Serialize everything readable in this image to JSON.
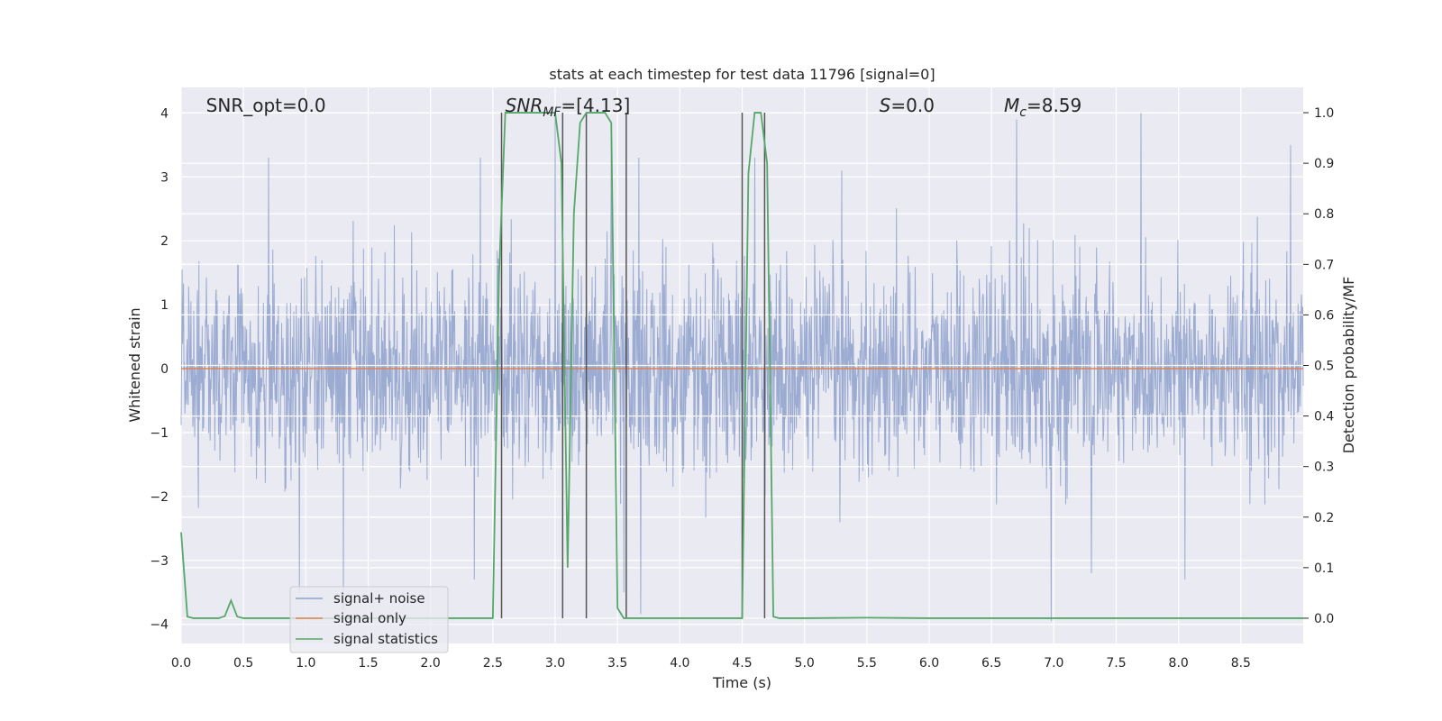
{
  "chart_data": {
    "type": "line",
    "title": "stats at each timestep for test data 11796 [signal=0]",
    "xlabel": "Time (s)",
    "ylabel_left": "Whitened strain",
    "ylabel_right": "Detection probability/MF",
    "xlim": [
      0.0,
      9.0
    ],
    "ylim_left": [
      -4.3,
      4.4
    ],
    "ylim_right": [
      -0.05,
      1.05
    ],
    "x_ticks": [
      0.0,
      0.5,
      1.0,
      1.5,
      2.0,
      2.5,
      3.0,
      3.5,
      4.0,
      4.5,
      5.0,
      5.5,
      6.0,
      6.5,
      7.0,
      7.5,
      8.0,
      8.5
    ],
    "x_tick_labels": [
      "0.0",
      "0.5",
      "1.0",
      "1.5",
      "2.0",
      "2.5",
      "3.0",
      "3.5",
      "4.0",
      "4.5",
      "5.0",
      "5.5",
      "6.0",
      "6.5",
      "7.0",
      "7.5",
      "8.0",
      "8.5"
    ],
    "y_ticks_left": [
      -4,
      -3,
      -2,
      -1,
      0,
      1,
      2,
      3,
      4
    ],
    "y_tick_labels_left": [
      "−4",
      "−3",
      "−2",
      "−1",
      "0",
      "1",
      "2",
      "3",
      "4"
    ],
    "y_ticks_right": [
      0.0,
      0.1,
      0.2,
      0.3,
      0.4,
      0.5,
      0.6,
      0.7,
      0.8,
      0.9,
      1.0
    ],
    "y_tick_labels_right": [
      "0.0",
      "0.1",
      "0.2",
      "0.3",
      "0.4",
      "0.5",
      "0.6",
      "0.7",
      "0.8",
      "0.9",
      "1.0"
    ],
    "grid": true,
    "legend_location": "lower-left",
    "annotations": [
      {
        "text": "SNR_opt=0.0",
        "x": 0.2
      },
      {
        "text": "SNR_MF=[4.13]",
        "x": 2.6
      },
      {
        "text": "S=0.0",
        "x": 5.6
      },
      {
        "text": "M_c=8.59",
        "x": 6.6
      }
    ],
    "series": [
      {
        "name": "signal+ noise",
        "axis": "left",
        "color": "#8da0cb",
        "description": "whitened strain noise, approx. gaussian, sigma ~0.8, range about -3.9 to 4.0",
        "sigma": 0.8,
        "peak_points": [
          [
            0.7,
            3.3
          ],
          [
            1.3,
            3.2
          ],
          [
            2.4,
            3.3
          ],
          [
            3.0,
            4.0
          ],
          [
            3.45,
            3.6
          ],
          [
            3.67,
            3.3
          ],
          [
            4.6,
            3.3
          ],
          [
            5.3,
            3.1
          ],
          [
            6.7,
            3.9
          ],
          [
            7.7,
            4.0
          ],
          [
            8.9,
            3.5
          ]
        ],
        "trough_points": [
          [
            0.95,
            -3.5
          ],
          [
            1.3,
            -3.8
          ],
          [
            2.35,
            -3.3
          ],
          [
            3.55,
            -3.5
          ],
          [
            6.98,
            -3.95
          ],
          [
            7.3,
            -3.2
          ],
          [
            8.05,
            -3.3
          ]
        ]
      },
      {
        "name": "signal only",
        "axis": "left",
        "color": "#dd8452",
        "x": [
          0.0,
          9.0
        ],
        "y": [
          0.0,
          0.0
        ]
      },
      {
        "name": "signal statistics",
        "axis": "right",
        "color": "#55a868",
        "x": [
          0.0,
          0.05,
          0.1,
          0.15,
          0.2,
          0.25,
          0.3,
          0.35,
          0.4,
          0.45,
          0.5,
          0.55,
          0.6,
          0.7,
          0.8,
          0.9,
          1.0,
          1.5,
          2.0,
          2.5,
          2.55,
          2.6,
          2.65,
          2.7,
          2.75,
          2.8,
          2.85,
          2.9,
          2.95,
          3.0,
          3.05,
          3.1,
          3.15,
          3.2,
          3.25,
          3.3,
          3.35,
          3.4,
          3.45,
          3.5,
          3.55,
          3.6,
          3.65,
          3.7,
          3.75,
          3.8,
          4.0,
          4.5,
          4.55,
          4.6,
          4.65,
          4.7,
          4.75,
          4.8,
          4.85,
          4.9,
          5.0,
          5.5,
          6.0,
          6.5,
          7.0,
          7.5,
          8.0,
          8.5,
          9.0
        ],
        "y": [
          0.17,
          0.003,
          0.0,
          0.0,
          0.0,
          0.0,
          0.0,
          0.004,
          0.035,
          0.003,
          0.0,
          0.0,
          0.0,
          0.0,
          0.0,
          0.0,
          0.0,
          0.0,
          0.0,
          0.0,
          0.68,
          1.0,
          1.0,
          1.0,
          1.0,
          1.0,
          1.0,
          1.0,
          1.0,
          1.0,
          0.9,
          0.1,
          0.8,
          0.98,
          1.0,
          1.0,
          1.0,
          1.0,
          0.98,
          0.02,
          0.0,
          0.0,
          0.0,
          0.0,
          0.0,
          0.0,
          0.0,
          0.0,
          0.88,
          1.0,
          1.0,
          0.9,
          0.003,
          0.0,
          0.0,
          0.0,
          0.0,
          0.001,
          0.0,
          0.0,
          0.0,
          0.0,
          0.0,
          0.0,
          0.0
        ]
      }
    ],
    "vertical_lines": [
      2.57,
      3.06,
      3.25,
      3.57,
      4.5,
      4.68
    ],
    "vertical_line_color": "#555555"
  }
}
